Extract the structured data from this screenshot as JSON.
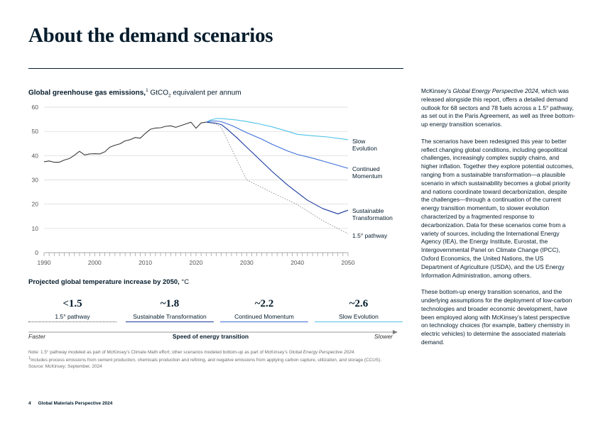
{
  "page": {
    "title": "About the demand scenarios",
    "footer_page": "4",
    "footer_title": "Global Materials Perspective 2024"
  },
  "chart_heading": {
    "bold": "Global greenhouse gas emissions,",
    "sup": "1",
    "unit_a": " GtCO",
    "unit_sub": "2",
    "unit_b": " equivalent per annum"
  },
  "chart_data": {
    "type": "line",
    "title": "Global greenhouse gas emissions, GtCO2 equivalent per annum",
    "xlim": [
      1990,
      2050
    ],
    "ylim": [
      0,
      60
    ],
    "y_ticks": [
      "0",
      "10",
      "20",
      "30",
      "40",
      "50",
      "60"
    ],
    "x_ticks": [
      "1990",
      "2000",
      "2010",
      "2020",
      "2030",
      "2040",
      "2050"
    ],
    "x_tick_values": [
      1990,
      2000,
      2010,
      2020,
      2030,
      2040,
      2050
    ],
    "y_tick_values": [
      0,
      10,
      20,
      30,
      40,
      50,
      60
    ],
    "grid": true,
    "series": [
      {
        "name": "Historical",
        "color": "#3a3a3a",
        "style": "solid",
        "x": [
          1990,
          1991,
          1992,
          1993,
          1994,
          1995,
          1996,
          1997,
          1998,
          1999,
          2000,
          2001,
          2002,
          2003,
          2004,
          2005,
          2006,
          2007,
          2008,
          2009,
          2010,
          2011,
          2012,
          2013,
          2014,
          2015,
          2016,
          2017,
          2018,
          2019,
          2020,
          2021,
          2022
        ],
        "y": [
          37.5,
          37.8,
          37.3,
          37.3,
          38.2,
          38.8,
          40.2,
          41.8,
          40.3,
          40.7,
          40.8,
          40.7,
          41.6,
          43.5,
          44.3,
          44.9,
          46.1,
          46.6,
          47.5,
          47.2,
          49.2,
          50.9,
          51.4,
          51.5,
          52.1,
          52.3,
          51.7,
          52.4,
          53.1,
          53.8,
          51.3,
          53.5,
          53.8
        ]
      },
      {
        "name": "Slow Evolution",
        "color": "#4ec3e8",
        "style": "solid",
        "x": [
          2022,
          2023,
          2024,
          2025,
          2026,
          2028,
          2030,
          2032,
          2035,
          2038,
          2040,
          2043,
          2046,
          2050
        ],
        "y": [
          53.8,
          54.8,
          55.3,
          55.3,
          55.1,
          54.7,
          54.1,
          53.3,
          51.9,
          50.1,
          48.8,
          48.2,
          47.7,
          46.6
        ]
      },
      {
        "name": "Continued Momentum",
        "color": "#3d6fd8",
        "style": "solid",
        "x": [
          2022,
          2023,
          2024,
          2025,
          2027,
          2030,
          2033,
          2035,
          2038,
          2040,
          2043,
          2046,
          2050
        ],
        "y": [
          53.8,
          54.3,
          54.3,
          54.0,
          52.5,
          49.5,
          46.8,
          44.7,
          42.0,
          40.5,
          39.0,
          37.2,
          34.8
        ]
      },
      {
        "name": "Sustainable Transformation",
        "color": "#1a3a9e",
        "style": "solid",
        "x": [
          2022,
          2024,
          2025,
          2026,
          2028,
          2030,
          2032,
          2035,
          2038,
          2040,
          2042,
          2045,
          2048,
          2050
        ],
        "y": [
          53.8,
          53.4,
          52.8,
          51.2,
          47.5,
          43.5,
          39.5,
          33.5,
          28.0,
          24.8,
          21.6,
          18.2,
          16.0,
          17.5
        ]
      },
      {
        "name": "1.5° pathway",
        "color": "#888888",
        "style": "dotted",
        "x": [
          2022,
          2024,
          2025,
          2030,
          2035,
          2040,
          2045,
          2050
        ],
        "y": [
          53.8,
          53.0,
          51.5,
          30.0,
          24.8,
          19.8,
          13.2,
          7.8
        ]
      }
    ]
  },
  "series_labels": [
    {
      "line1": "Slow",
      "line2": "Evolution"
    },
    {
      "line1": "Continued",
      "line2": "Momentum"
    },
    {
      "line1": "Sustainable",
      "line2": "Transformation"
    },
    {
      "line1": "1.5° pathway",
      "line2": ""
    }
  ],
  "temperature": {
    "heading_bold": "Projected global temperature increase by 2050,",
    "heading_unit": " °C",
    "items": [
      {
        "value": "<1.5",
        "label": "1.5° pathway",
        "color": "#555555",
        "style": "dotted"
      },
      {
        "value": "~1.8",
        "label": "Sustainable Transformation",
        "color": "#1a3a9e",
        "style": "solid"
      },
      {
        "value": "~2.2",
        "label": "Continued Momentum",
        "color": "#3d6fd8",
        "style": "solid"
      },
      {
        "value": "~2.6",
        "label": "Slow Evolution",
        "color": "#4ec3e8",
        "style": "solid"
      }
    ],
    "axis_left": "Faster",
    "axis_center": "Speed of energy transition",
    "axis_right": "Slower"
  },
  "notes": {
    "note_a": "Note: 1.5° pathway modeled as part of McKinsey’s Climate Math effort; other scenarios modeled bottom-up as part of McKinsey’s ",
    "note_italic": "Global Energy Perspective 2024",
    "note_b": ".",
    "footnote_sup": "1",
    "footnote": "Includes process emissions from cement production, chemicals production and refining, and negative emissions from applying carbon capture, utilization, and storage (CCUS).",
    "source": "Source: McKinsey; September, 2024"
  },
  "side_text": {
    "p1_a": "McKinsey’s ",
    "p1_italic": "Global Energy Perspective 2024",
    "p1_b": ", which was released alongside this report, offers a detailed demand outlook for 68 sectors and 78 fuels across a 1.5° pathway, as set out in the Paris Agreement, as well as three bottom-up energy transition scenarios.",
    "p2": "The scenarios have been redesigned this year to better reflect changing global conditions, including geopolitical challenges, increasingly complex supply chains, and higher inflation. Together they explore potential outcomes, ranging from a sustainable transformation—a plausible scenario in which sustainability becomes a global priority and nations coordinate toward decarbonization, despite the challenges—through a continuation of the current energy transition momentum, to slower evolution characterized by a fragmented response to decarbonization. Data for these scenarios come from a variety of sources, including the International Energy Agency (IEA), the Energy Institute, Eurostat, the Intergovernmental Panel on Climate Change (IPCC), Oxford Economics, the United Nations, the US Department of Agriculture (USDA), and the US Energy Information Administration, among others.",
    "p3": "These bottom-up energy transition scenarios, and the underlying assumptions for the deployment of low-carbon technologies and broader economic development, have been employed along with McKinsey’s latest perspective on technology choices (for example, battery chemistry in electric vehicles) to determine the associated materials demand."
  }
}
